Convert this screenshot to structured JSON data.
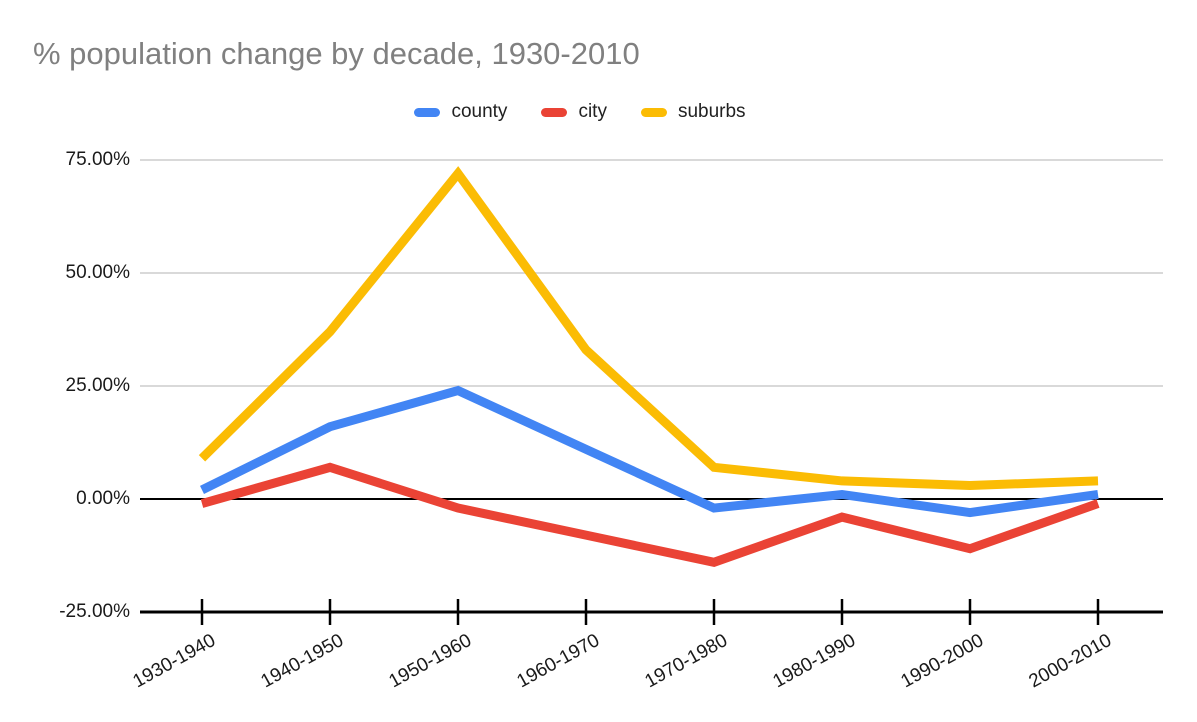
{
  "chart_data": {
    "type": "line",
    "title": "% population change by decade, 1930-2010",
    "categories": [
      "1930-1940",
      "1940-1950",
      "1950-1960",
      "1960-1970",
      "1970-1980",
      "1980-1990",
      "1990-2000",
      "2000-2010"
    ],
    "series": [
      {
        "name": "county",
        "color": "#4285F4",
        "values": [
          2,
          16,
          24,
          11,
          -2,
          1,
          -3,
          1
        ]
      },
      {
        "name": "city",
        "color": "#EA4335",
        "values": [
          -1,
          7,
          -2,
          -8,
          -14,
          -4,
          -11,
          -1
        ]
      },
      {
        "name": "suburbs",
        "color": "#FBBC04",
        "values": [
          9,
          37,
          72,
          33,
          7,
          4,
          3,
          4
        ]
      }
    ],
    "y_axis": {
      "ticks": [
        {
          "label": "75.00%",
          "value": 75
        },
        {
          "label": "50.00%",
          "value": 50
        },
        {
          "label": "25.00%",
          "value": 25
        },
        {
          "label": "0.00%",
          "value": 0
        },
        {
          "label": "-25.00%",
          "value": -25
        }
      ],
      "ylim": [
        -25,
        75
      ]
    },
    "legend_position": "top",
    "grid": true,
    "colors": {
      "gridline": "#D9D9D9",
      "zero_line": "#000000",
      "axis_line": "#000000",
      "title_text": "#808080",
      "tick_text": "#1a1a1a"
    }
  }
}
